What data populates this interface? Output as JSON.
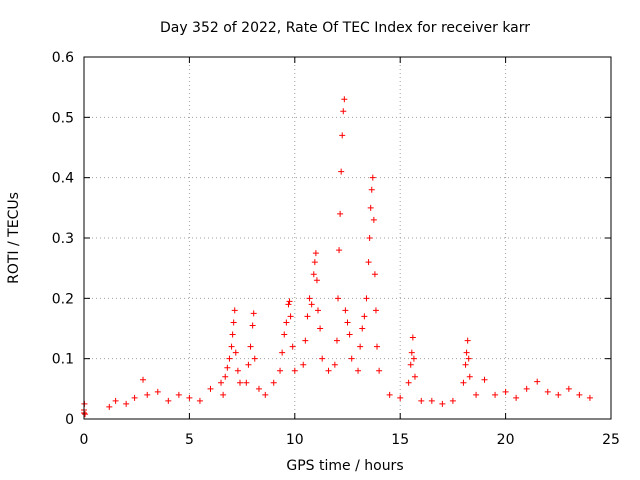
{
  "chart_data": {
    "type": "scatter",
    "title": "Day 352 of 2022, Rate Of TEC Index for receiver karr",
    "xlabel": "GPS time / hours",
    "ylabel": "ROTI / TECUs",
    "xlim": [
      0,
      25
    ],
    "ylim": [
      0,
      0.6
    ],
    "xticks": [
      0,
      5,
      10,
      15,
      20,
      25
    ],
    "yticks": [
      0,
      0.1,
      0.2,
      0.3,
      0.4,
      0.5,
      0.6
    ],
    "xtick_labels": [
      "0",
      "5",
      "10",
      "15",
      "20",
      "25"
    ],
    "ytick_labels": [
      "0",
      "0.1",
      "0.2",
      "0.3",
      "0.4",
      "0.5",
      "0.6"
    ],
    "grid": true,
    "marker": "+",
    "color": "#ff0000",
    "series": [
      {
        "points": [
          [
            0.0,
            0.01
          ],
          [
            0.0,
            0.015
          ],
          [
            0.02,
            0.025
          ],
          [
            0.05,
            0.008
          ],
          [
            1.2,
            0.02
          ],
          [
            1.5,
            0.03
          ],
          [
            2.0,
            0.025
          ],
          [
            2.4,
            0.035
          ],
          [
            2.8,
            0.065
          ],
          [
            3.0,
            0.04
          ],
          [
            3.5,
            0.045
          ],
          [
            4.0,
            0.03
          ],
          [
            4.5,
            0.04
          ],
          [
            5.0,
            0.035
          ],
          [
            5.5,
            0.03
          ],
          [
            6.0,
            0.05
          ],
          [
            6.5,
            0.06
          ],
          [
            6.6,
            0.04
          ],
          [
            6.7,
            0.07
          ],
          [
            6.8,
            0.085
          ],
          [
            6.9,
            0.1
          ],
          [
            7.0,
            0.12
          ],
          [
            7.05,
            0.14
          ],
          [
            7.1,
            0.16
          ],
          [
            7.15,
            0.18
          ],
          [
            7.2,
            0.11
          ],
          [
            7.3,
            0.08
          ],
          [
            7.4,
            0.06
          ],
          [
            7.7,
            0.06
          ],
          [
            7.8,
            0.09
          ],
          [
            7.9,
            0.12
          ],
          [
            8.0,
            0.155
          ],
          [
            8.05,
            0.175
          ],
          [
            8.1,
            0.1
          ],
          [
            8.3,
            0.05
          ],
          [
            8.6,
            0.04
          ],
          [
            9.0,
            0.06
          ],
          [
            9.3,
            0.08
          ],
          [
            9.4,
            0.11
          ],
          [
            9.5,
            0.14
          ],
          [
            9.6,
            0.16
          ],
          [
            9.7,
            0.19
          ],
          [
            9.75,
            0.195
          ],
          [
            9.8,
            0.17
          ],
          [
            9.9,
            0.12
          ],
          [
            10.0,
            0.08
          ],
          [
            10.4,
            0.09
          ],
          [
            10.5,
            0.13
          ],
          [
            10.6,
            0.17
          ],
          [
            10.7,
            0.2
          ],
          [
            10.8,
            0.19
          ],
          [
            10.9,
            0.24
          ],
          [
            10.95,
            0.26
          ],
          [
            11.0,
            0.275
          ],
          [
            11.05,
            0.23
          ],
          [
            11.1,
            0.18
          ],
          [
            11.2,
            0.15
          ],
          [
            11.3,
            0.1
          ],
          [
            11.6,
            0.08
          ],
          [
            11.9,
            0.09
          ],
          [
            12.0,
            0.13
          ],
          [
            12.05,
            0.2
          ],
          [
            12.1,
            0.28
          ],
          [
            12.15,
            0.34
          ],
          [
            12.2,
            0.41
          ],
          [
            12.25,
            0.47
          ],
          [
            12.3,
            0.51
          ],
          [
            12.35,
            0.53
          ],
          [
            12.4,
            0.18
          ],
          [
            12.5,
            0.16
          ],
          [
            12.6,
            0.14
          ],
          [
            12.7,
            0.1
          ],
          [
            13.0,
            0.08
          ],
          [
            13.1,
            0.12
          ],
          [
            13.2,
            0.15
          ],
          [
            13.3,
            0.17
          ],
          [
            13.4,
            0.2
          ],
          [
            13.5,
            0.26
          ],
          [
            13.55,
            0.3
          ],
          [
            13.6,
            0.35
          ],
          [
            13.65,
            0.38
          ],
          [
            13.7,
            0.4
          ],
          [
            13.75,
            0.33
          ],
          [
            13.8,
            0.24
          ],
          [
            13.85,
            0.18
          ],
          [
            13.9,
            0.12
          ],
          [
            14.0,
            0.08
          ],
          [
            14.5,
            0.04
          ],
          [
            15.0,
            0.035
          ],
          [
            15.4,
            0.06
          ],
          [
            15.5,
            0.09
          ],
          [
            15.55,
            0.11
          ],
          [
            15.6,
            0.135
          ],
          [
            15.65,
            0.1
          ],
          [
            15.7,
            0.07
          ],
          [
            16.0,
            0.03
          ],
          [
            16.5,
            0.03
          ],
          [
            17.0,
            0.025
          ],
          [
            17.5,
            0.03
          ],
          [
            18.0,
            0.06
          ],
          [
            18.1,
            0.09
          ],
          [
            18.15,
            0.11
          ],
          [
            18.2,
            0.13
          ],
          [
            18.25,
            0.1
          ],
          [
            18.3,
            0.07
          ],
          [
            18.6,
            0.04
          ],
          [
            19.0,
            0.065
          ],
          [
            19.5,
            0.04
          ],
          [
            20.0,
            0.045
          ],
          [
            20.5,
            0.035
          ],
          [
            21.0,
            0.05
          ],
          [
            21.5,
            0.062
          ],
          [
            22.0,
            0.045
          ],
          [
            22.5,
            0.04
          ],
          [
            23.0,
            0.05
          ],
          [
            23.5,
            0.04
          ],
          [
            24.0,
            0.035
          ]
        ]
      }
    ]
  }
}
